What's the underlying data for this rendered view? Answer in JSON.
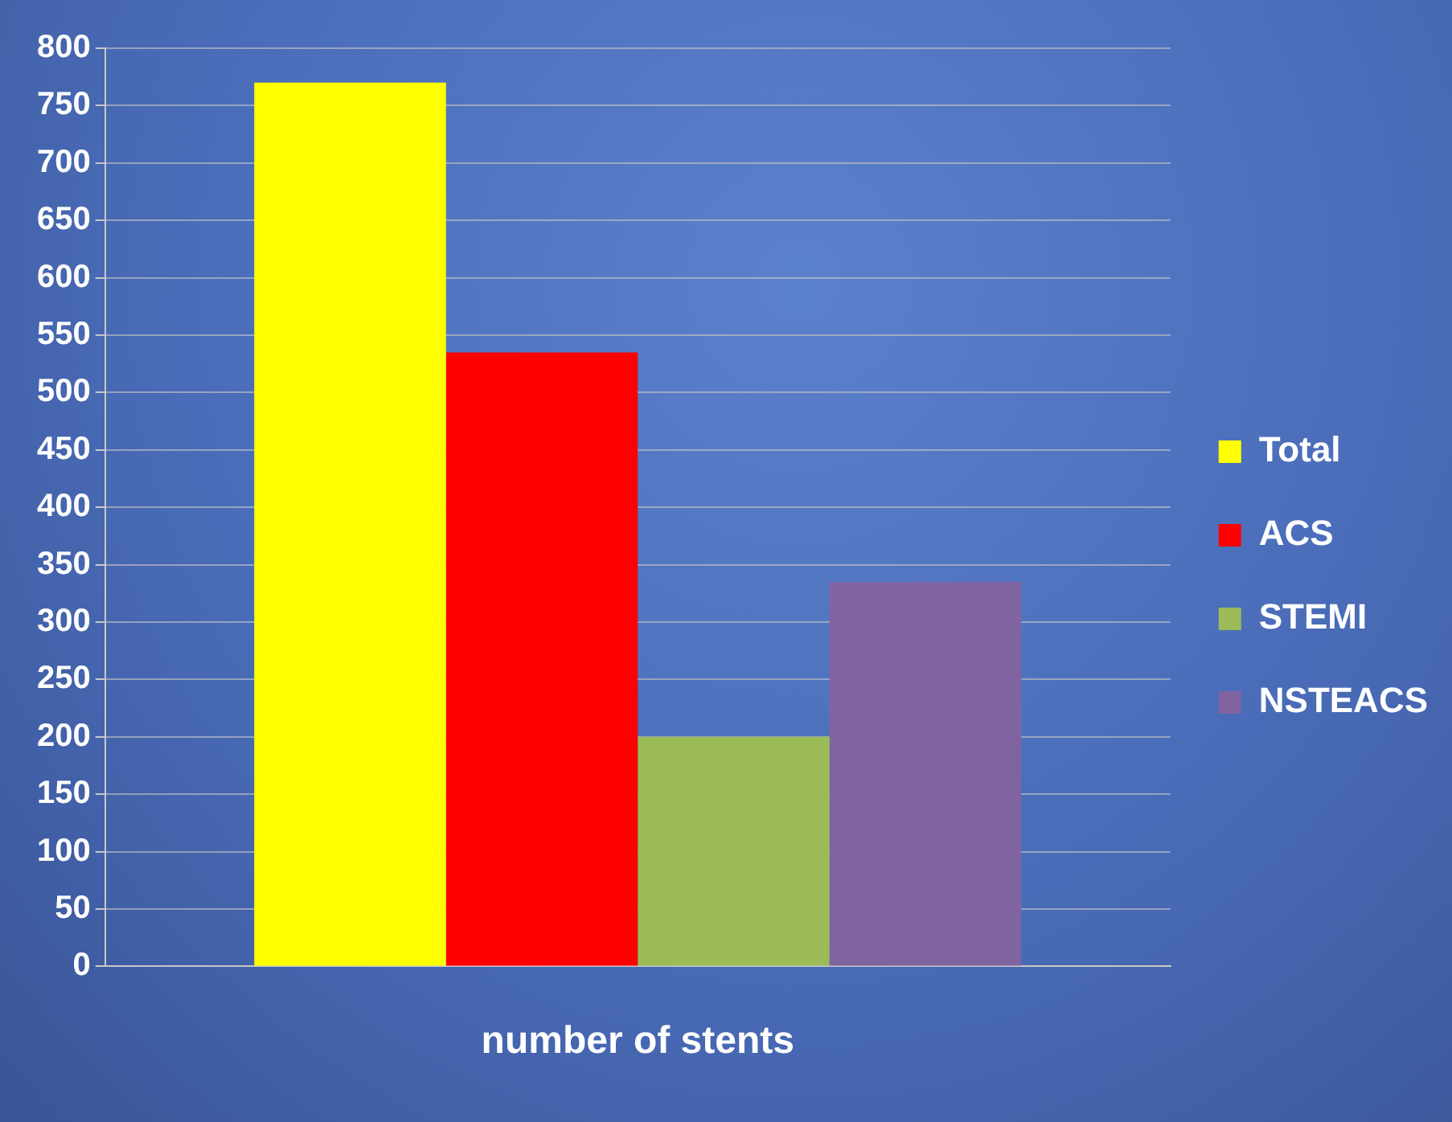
{
  "chart_data": {
    "type": "bar",
    "categories": [
      "number of stents"
    ],
    "series": [
      {
        "name": "Total",
        "color": "#ffff00",
        "values": [
          770
        ]
      },
      {
        "name": "ACS",
        "color": "#ff0000",
        "values": [
          535
        ]
      },
      {
        "name": "STEMI",
        "color": "#9bbb59",
        "values": [
          200
        ]
      },
      {
        "name": "NSTEACS",
        "color": "#8064a2",
        "values": [
          335
        ]
      }
    ],
    "ylim": [
      0,
      800
    ],
    "yticks": [
      0,
      50,
      100,
      150,
      200,
      250,
      300,
      350,
      400,
      450,
      500,
      550,
      600,
      650,
      700,
      750,
      800
    ],
    "grid": "y",
    "legend": "right"
  }
}
